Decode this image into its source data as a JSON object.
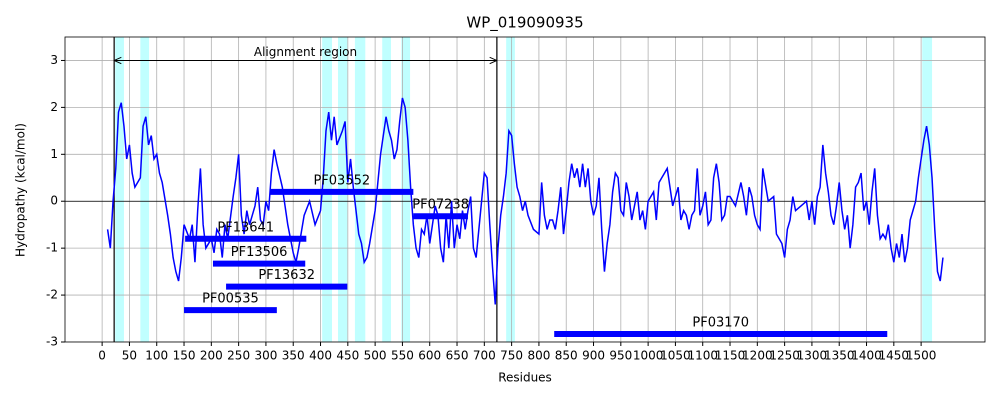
{
  "chart_data": {
    "type": "line",
    "title": "WP_019090935",
    "xlabel": "Residues",
    "ylabel": "Hydropathy (kcal/mol)",
    "xlim": [
      -68,
      1617
    ],
    "ylim": [
      -3,
      3.5
    ],
    "xticks": [
      0,
      50,
      100,
      150,
      200,
      250,
      300,
      350,
      400,
      450,
      500,
      550,
      600,
      650,
      700,
      750,
      800,
      850,
      900,
      950,
      1000,
      1050,
      1100,
      1150,
      1200,
      1250,
      1300,
      1350,
      1400,
      1450,
      1500
    ],
    "yticks": [
      -3,
      -2,
      -1,
      0,
      1,
      2,
      3
    ],
    "grid": true,
    "hline": 0,
    "x": [
      10,
      15,
      20,
      25,
      30,
      35,
      40,
      45,
      50,
      55,
      60,
      70,
      75,
      80,
      85,
      90,
      95,
      100,
      105,
      110,
      120,
      125,
      130,
      135,
      140,
      145,
      150,
      160,
      165,
      170,
      175,
      180,
      185,
      190,
      200,
      205,
      210,
      215,
      220,
      225,
      230,
      240,
      245,
      250,
      255,
      260,
      265,
      270,
      280,
      285,
      290,
      295,
      300,
      305,
      310,
      315,
      320,
      330,
      340,
      350,
      355,
      360,
      370,
      380,
      390,
      400,
      405,
      410,
      415,
      420,
      425,
      430,
      440,
      445,
      450,
      455,
      460,
      465,
      470,
      475,
      480,
      485,
      490,
      500,
      505,
      510,
      515,
      520,
      525,
      530,
      535,
      540,
      545,
      550,
      555,
      560,
      565,
      570,
      575,
      580,
      585,
      590,
      595,
      600,
      610,
      615,
      620,
      625,
      630,
      635,
      640,
      645,
      650,
      655,
      660,
      665,
      670,
      675,
      680,
      685,
      690,
      695,
      700,
      705,
      710,
      715,
      720,
      725,
      730,
      735,
      740,
      745,
      750,
      755,
      760,
      765,
      770,
      775,
      780,
      790,
      800,
      805,
      810,
      815,
      820,
      825,
      830,
      835,
      840,
      845,
      850,
      855,
      860,
      865,
      870,
      875,
      880,
      885,
      890,
      895,
      900,
      905,
      910,
      915,
      920,
      925,
      930,
      935,
      940,
      945,
      950,
      955,
      960,
      965,
      970,
      980,
      985,
      990,
      995,
      1000,
      1010,
      1015,
      1020,
      1025,
      1030,
      1035,
      1040,
      1045,
      1050,
      1055,
      1060,
      1065,
      1070,
      1075,
      1080,
      1085,
      1090,
      1095,
      1100,
      1105,
      1110,
      1115,
      1120,
      1125,
      1130,
      1135,
      1140,
      1145,
      1150,
      1160,
      1170,
      1175,
      1180,
      1185,
      1190,
      1195,
      1200,
      1205,
      1210,
      1220,
      1230,
      1235,
      1240,
      1245,
      1250,
      1255,
      1260,
      1265,
      1270,
      1280,
      1290,
      1295,
      1300,
      1305,
      1310,
      1315,
      1320,
      1325,
      1330,
      1335,
      1340,
      1345,
      1350,
      1355,
      1360,
      1365,
      1370,
      1375,
      1380,
      1385,
      1390,
      1395,
      1400,
      1405,
      1410,
      1415,
      1420,
      1425,
      1430,
      1435,
      1440,
      1445,
      1450,
      1455,
      1460,
      1465,
      1470,
      1475,
      1480,
      1485,
      1490,
      1495,
      1500,
      1505,
      1510,
      1515,
      1520,
      1525,
      1530,
      1535,
      1540
    ],
    "series": [
      {
        "color": "#0000ff",
        "values": [
          -0.6,
          -1.0,
          0.0,
          0.7,
          1.9,
          2.1,
          1.6,
          0.9,
          1.2,
          0.6,
          0.3,
          0.5,
          1.6,
          1.8,
          1.2,
          1.4,
          0.9,
          1.0,
          0.6,
          0.4,
          -0.3,
          -0.7,
          -1.2,
          -1.5,
          -1.7,
          -1.2,
          -0.5,
          -0.8,
          -0.5,
          -1.3,
          -0.2,
          0.7,
          -0.5,
          -1.0,
          -0.8,
          -1.1,
          -0.6,
          -0.7,
          -1.2,
          -0.5,
          -0.8,
          0.1,
          0.5,
          1.0,
          -0.3,
          -0.7,
          -0.2,
          -0.5,
          -0.1,
          0.3,
          -0.4,
          -0.5,
          0.0,
          -0.2,
          0.6,
          1.1,
          0.8,
          0.3,
          -0.5,
          -1.1,
          -1.3,
          -1.0,
          -0.3,
          0.0,
          -0.5,
          -0.2,
          0.5,
          1.5,
          1.9,
          1.3,
          1.8,
          1.2,
          1.5,
          1.7,
          0.4,
          0.9,
          0.3,
          -0.2,
          -0.7,
          -0.9,
          -1.3,
          -1.2,
          -0.9,
          -0.2,
          0.4,
          1.0,
          1.4,
          1.8,
          1.5,
          1.3,
          0.9,
          1.1,
          1.7,
          2.2,
          2.0,
          1.3,
          0.3,
          -0.5,
          -1.0,
          -1.2,
          -0.6,
          -0.7,
          -0.3,
          -0.9,
          -0.1,
          -0.3,
          -1.0,
          -1.3,
          -0.3,
          -1.0,
          0.0,
          -1.0,
          -0.5,
          -0.8,
          -0.2,
          -0.6,
          -0.2,
          0.1,
          -1.0,
          -1.2,
          -0.6,
          0.0,
          0.6,
          0.5,
          -0.5,
          -1.4,
          -2.2,
          -1.0,
          -0.3,
          0.1,
          0.6,
          1.5,
          1.4,
          0.8,
          0.3,
          0.1,
          -0.2,
          0.0,
          -0.3,
          -0.6,
          -0.7,
          0.4,
          -0.3,
          -0.6,
          -0.4,
          -0.4,
          -0.6,
          -0.2,
          0.3,
          -0.7,
          -0.2,
          0.4,
          0.8,
          0.5,
          0.7,
          0.3,
          0.8,
          0.3,
          0.7,
          0.0,
          -0.3,
          -0.1,
          0.5,
          -0.6,
          -1.5,
          -0.9,
          -0.5,
          0.2,
          0.6,
          0.5,
          -0.2,
          -0.3,
          0.4,
          0.1,
          -0.4,
          0.2,
          -0.4,
          -0.2,
          -0.6,
          0.0,
          0.2,
          -0.4,
          0.4,
          0.5,
          0.6,
          0.7,
          0.3,
          -0.1,
          0.1,
          0.3,
          -0.4,
          -0.2,
          -0.3,
          -0.6,
          -0.3,
          -0.2,
          0.7,
          -0.3,
          -0.1,
          0.2,
          -0.5,
          -0.4,
          0.5,
          0.8,
          0.4,
          -0.4,
          -0.3,
          0.1,
          0.1,
          -0.1,
          0.4,
          0.1,
          -0.3,
          0.3,
          0.1,
          -0.3,
          -0.5,
          -0.6,
          0.7,
          0.0,
          0.1,
          -0.7,
          -0.8,
          -0.9,
          -1.2,
          -0.6,
          -0.4,
          0.1,
          -0.2,
          -0.1,
          0.0,
          -0.4,
          0.0,
          -0.5,
          0.1,
          0.3,
          1.2,
          0.6,
          0.2,
          -0.3,
          -0.5,
          -0.1,
          0.4,
          -0.2,
          -0.6,
          -0.3,
          -1.0,
          -0.5,
          0.3,
          0.4,
          0.6,
          -0.2,
          0.0,
          -0.5,
          0.2,
          0.7,
          -0.3,
          -0.8,
          -0.7,
          -0.8,
          -0.5,
          -1.0,
          -1.3,
          -0.9,
          -1.2,
          -0.7,
          -1.3,
          -1.0,
          -0.4,
          -0.2,
          0.0,
          0.5,
          0.9,
          1.3,
          1.6,
          1.2,
          0.5,
          -0.6,
          -1.5,
          -1.7,
          -1.2
        ]
      }
    ],
    "highlights": {
      "color": "#c0ffff",
      "ranges": [
        [
          24,
          40
        ],
        [
          70,
          86
        ],
        [
          403,
          421
        ],
        [
          432,
          449
        ],
        [
          463,
          482
        ],
        [
          513,
          529
        ],
        [
          548,
          564
        ],
        [
          740,
          756
        ],
        [
          1502,
          1520
        ]
      ]
    },
    "alignment_region": {
      "label": "Alignment region",
      "start": 22,
      "end": 723,
      "y": 3
    },
    "domains": {
      "color": "#0000ff",
      "items": [
        {
          "name": "PF03552",
          "start": 308,
          "end": 570,
          "y": 0.2
        },
        {
          "name": "PF07238",
          "start": 570,
          "end": 670,
          "y": -0.32
        },
        {
          "name": "PF13641",
          "start": 152,
          "end": 374,
          "y": -0.8
        },
        {
          "name": "PF13506",
          "start": 203,
          "end": 372,
          "y": -1.33
        },
        {
          "name": "PF13632",
          "start": 227,
          "end": 449,
          "y": -1.82
        },
        {
          "name": "PF00535",
          "start": 150,
          "end": 320,
          "y": -2.32
        },
        {
          "name": "PF03170",
          "start": 828,
          "end": 1438,
          "y": -2.83
        }
      ]
    }
  }
}
